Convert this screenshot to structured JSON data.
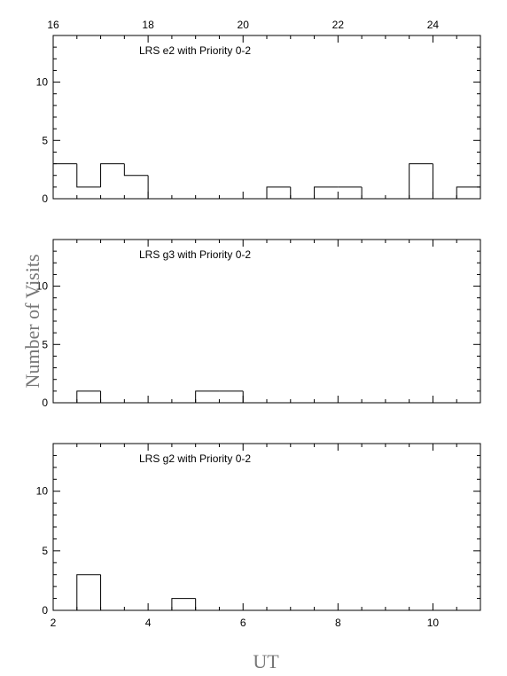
{
  "chart_data": [
    {
      "type": "bar",
      "style": "step histogram",
      "title": "LRS e2 with Priority 0-2",
      "bin_width": 0.5,
      "bin_starts": [
        2.0,
        2.5,
        3.0,
        3.5,
        4.0,
        4.5,
        5.0,
        5.5,
        6.0,
        6.5,
        7.0,
        7.5,
        8.0,
        8.5,
        9.0,
        9.5,
        10.0,
        10.5
      ],
      "values": [
        3,
        1,
        3,
        2,
        0,
        0,
        0,
        0,
        0,
        1,
        0,
        1,
        1,
        0,
        0,
        3,
        0,
        1
      ],
      "xlim": [
        2,
        11
      ],
      "ylim": [
        0,
        14
      ],
      "y_ticks": [
        0,
        5,
        10
      ],
      "top_axis": {
        "xlim": [
          16,
          25
        ],
        "ticks": [
          16,
          18,
          20,
          22,
          24
        ]
      }
    },
    {
      "type": "bar",
      "style": "step histogram",
      "title": "LRS g3 with Priority 0-2",
      "bin_width": 0.5,
      "bin_starts": [
        2.0,
        2.5,
        3.0,
        3.5,
        4.0,
        4.5,
        5.0,
        5.5,
        6.0,
        6.5,
        7.0,
        7.5,
        8.0,
        8.5,
        9.0,
        9.5,
        10.0,
        10.5
      ],
      "values": [
        0,
        1,
        0,
        0,
        0,
        0,
        1,
        1,
        0,
        0,
        0,
        0,
        0,
        0,
        0,
        0,
        0,
        0
      ],
      "xlim": [
        2,
        11
      ],
      "ylim": [
        0,
        14
      ],
      "y_ticks": [
        0,
        5,
        10
      ]
    },
    {
      "type": "bar",
      "style": "step histogram",
      "title": "LRS g2 with Priority 0-2",
      "bin_width": 0.5,
      "bin_starts": [
        2.0,
        2.5,
        3.0,
        3.5,
        4.0,
        4.5,
        5.0,
        5.5,
        6.0,
        6.5,
        7.0,
        7.5,
        8.0,
        8.5,
        9.0,
        9.5,
        10.0,
        10.5
      ],
      "values": [
        0,
        3,
        0,
        0,
        0,
        1,
        0,
        0,
        0,
        0,
        0,
        0,
        0,
        0,
        0,
        0,
        0,
        0
      ],
      "xlim": [
        2,
        11
      ],
      "ylim": [
        0,
        14
      ],
      "y_ticks": [
        0,
        5,
        10
      ],
      "x_ticks": [
        2,
        4,
        6,
        8,
        10
      ]
    }
  ],
  "ylabel": "Number of Visits",
  "xlabel": "UT"
}
